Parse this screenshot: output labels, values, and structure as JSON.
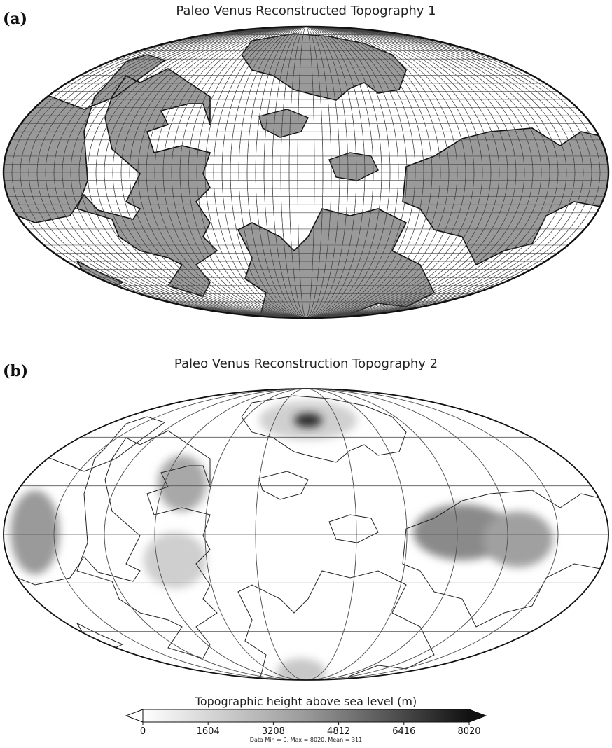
{
  "panel_a": {
    "label": "(a)",
    "title": "Paleo Venus Reconstructed Topography 1"
  },
  "panel_b": {
    "label": "(b)",
    "title": "Paleo Venus Reconstruction Topography 2"
  },
  "colorbar": {
    "title": "Topographic height above sea level (m)",
    "ticks": [
      "0",
      "1604",
      "3208",
      "4812",
      "6416",
      "8020"
    ],
    "stats": "Data Min = 0, Max = 8020, Mean = 311",
    "low_color": "#ffffff",
    "high_color": "#111111"
  },
  "colors": {
    "land_fill": "#9a9a9a",
    "ocean_fill": "#ffffff",
    "coastline": "#111111",
    "grid": "#777777"
  }
}
